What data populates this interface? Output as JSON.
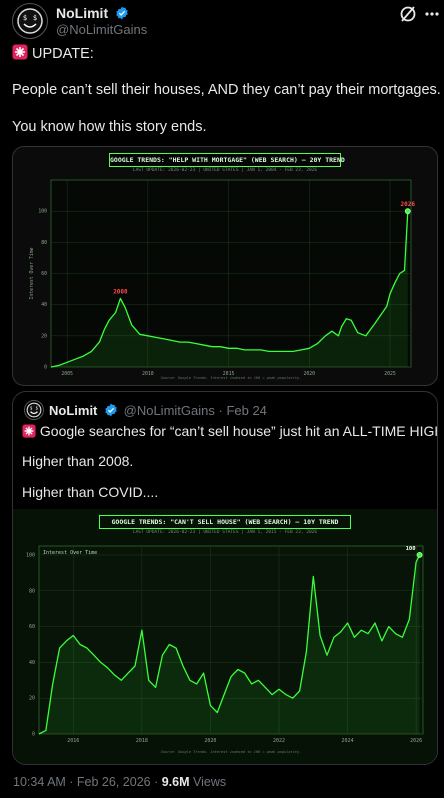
{
  "post": {
    "author_name": "NoLimit",
    "author_handle": "@NoLimitGains",
    "alert_label": "UPDATE:",
    "line1": "People can’t sell their houses, AND they can’t pay their mortgages.",
    "line2": "You know how this story ends.",
    "timestamp": "10:34 AM · Feb 26, 2026",
    "views_count": "9.6M",
    "views_label": "Views"
  },
  "quote": {
    "author_name": "NoLimit",
    "author_handle": "@NoLimitGains",
    "date": "· Feb 24",
    "line1": "Google searches for “can’t sell house” just hit an ALL-TIME HIGH.",
    "line2": "Higher than 2008.",
    "line3": "Higher than COVID...."
  },
  "colors": {
    "accent_green": "#39ff3a",
    "red_label": "#ff4d4d",
    "verified_blue": "#1d9bf0"
  },
  "chart_data": [
    {
      "type": "area",
      "title": "GOOGLE TRENDS: \"HELP WITH MORTGAGE\" (WEB SEARCH) — 20Y TREND",
      "subtitle": "LAST UPDATE: 2026-02-23  |  UNITED STATES  |  JAN 1, 2004 - FEB 23, 2026",
      "ylabel": "Interest Over Time",
      "source": "Source: Google Trends. Interest indexed to 100 = peak popularity.",
      "xlim": [
        2004,
        2026.3
      ],
      "ylim": [
        0,
        120
      ],
      "x_ticks": [
        "2005",
        "2010",
        "2015",
        "2020",
        "2025"
      ],
      "x_tick_values": [
        2005,
        2010,
        2015,
        2020,
        2025
      ],
      "y_ticks": [
        "0",
        "20",
        "40",
        "60",
        "80",
        "100"
      ],
      "y_tick_values": [
        0,
        20,
        40,
        60,
        80,
        100
      ],
      "annotations": [
        {
          "text": "2008",
          "x": 2008.3,
          "y": 44
        },
        {
          "text": "2026",
          "x": 2026.1,
          "y": 100
        }
      ],
      "x": [
        2004,
        2004.5,
        2005,
        2005.5,
        2006,
        2006.5,
        2007,
        2007.3,
        2007.6,
        2008,
        2008.3,
        2008.6,
        2009,
        2009.5,
        2010,
        2010.5,
        2011,
        2011.5,
        2012,
        2012.5,
        2013,
        2013.5,
        2014,
        2014.5,
        2015,
        2015.5,
        2016,
        2016.5,
        2017,
        2017.5,
        2018,
        2018.5,
        2019,
        2019.5,
        2020,
        2020.5,
        2021,
        2021.4,
        2021.8,
        2022,
        2022.3,
        2022.6,
        2023,
        2023.5,
        2024,
        2024.4,
        2024.8,
        2025,
        2025.3,
        2025.6,
        2025.9,
        2026.1
      ],
      "y": [
        0,
        1,
        3,
        5,
        7,
        10,
        16,
        24,
        30,
        35,
        44,
        38,
        27,
        21,
        20,
        19,
        18,
        17,
        16,
        16,
        15,
        14,
        13,
        13,
        12,
        12,
        11,
        11,
        11,
        10,
        10,
        10,
        10,
        11,
        12,
        15,
        20,
        23,
        20,
        26,
        31,
        30,
        22,
        20,
        27,
        33,
        39,
        47,
        54,
        60,
        62,
        100
      ]
    },
    {
      "type": "area",
      "title": "GOOGLE TRENDS: \"CAN'T SELL HOUSE\" (WEB SEARCH) — 10Y TREND",
      "subtitle": "LAST UPDATE: 2026-02-23  |  UNITED STATES  |  JAN 1, 2015 - FEB 23, 2026",
      "ylabel": "Interest Over Time",
      "source": "Source: Google Trends. Interest indexed to 100 = peak popularity.",
      "xlim": [
        2015,
        2026.2
      ],
      "ylim": [
        0,
        105
      ],
      "x_ticks": [
        "2016",
        "2018",
        "2020",
        "2022",
        "2024",
        "2026"
      ],
      "x_tick_values": [
        2016,
        2018,
        2020,
        2022,
        2024,
        2026
      ],
      "y_ticks": [
        "0",
        "20",
        "40",
        "60",
        "80",
        "100"
      ],
      "y_tick_values": [
        0,
        20,
        40,
        60,
        80,
        100
      ],
      "annotations": [
        {
          "text": "100",
          "x": 2026.1,
          "y": 100
        }
      ],
      "x": [
        2015,
        2015.2,
        2015.4,
        2015.6,
        2015.8,
        2016,
        2016.2,
        2016.4,
        2016.6,
        2016.8,
        2017,
        2017.2,
        2017.4,
        2017.6,
        2017.8,
        2018,
        2018.2,
        2018.4,
        2018.6,
        2018.8,
        2019,
        2019.2,
        2019.4,
        2019.6,
        2019.8,
        2020,
        2020.2,
        2020.4,
        2020.6,
        2020.8,
        2021,
        2021.2,
        2021.4,
        2021.6,
        2021.8,
        2022,
        2022.2,
        2022.4,
        2022.6,
        2022.8,
        2023,
        2023.2,
        2023.4,
        2023.6,
        2023.8,
        2024,
        2024.2,
        2024.4,
        2024.6,
        2024.8,
        2025,
        2025.2,
        2025.4,
        2025.6,
        2025.8,
        2026,
        2026.1
      ],
      "y": [
        0,
        2,
        28,
        48,
        52,
        55,
        50,
        48,
        44,
        40,
        37,
        33,
        30,
        34,
        38,
        58,
        30,
        26,
        44,
        50,
        48,
        38,
        30,
        28,
        34,
        16,
        12,
        22,
        32,
        36,
        34,
        28,
        30,
        26,
        22,
        25,
        22,
        20,
        24,
        46,
        88,
        55,
        44,
        54,
        57,
        62,
        54,
        58,
        56,
        62,
        52,
        60,
        56,
        54,
        64,
        96,
        100
      ]
    }
  ]
}
